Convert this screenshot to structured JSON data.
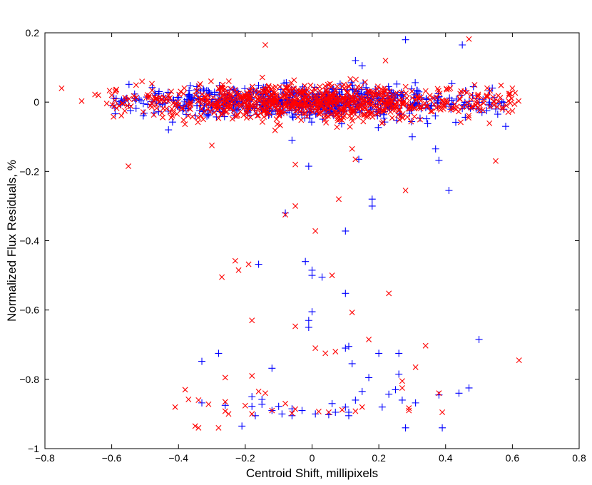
{
  "chart_data": {
    "type": "scatter",
    "title": "",
    "xlabel": "Centroid Shift, millipixels",
    "ylabel": "Normalized Flux Residuals, %",
    "xlim": [
      -0.8,
      0.8
    ],
    "ylim": [
      -1,
      0.2
    ],
    "xticks": [
      -0.8,
      -0.6,
      -0.4,
      -0.2,
      0,
      0.2,
      0.4,
      0.6,
      0.8
    ],
    "yticks": [
      -1,
      -0.8,
      -0.6,
      -0.4,
      -0.2,
      0,
      0.2
    ],
    "xtick_labels": [
      "−0.8",
      "−0.6",
      "−0.4",
      "−0.2",
      "0",
      "0.2",
      "0.4",
      "0.6",
      "0.8"
    ],
    "ytick_labels": [
      "−1",
      "−0.8",
      "−0.6",
      "−0.4",
      "−0.2",
      "0",
      "0.2"
    ],
    "grid": false,
    "legend": "none",
    "series": [
      {
        "marker": "plus",
        "color": "#0000ff",
        "cluster": {
          "n": 700,
          "x_range": [
            -0.6,
            0.58
          ],
          "y_mean": 0.0,
          "y_std": 0.022
        },
        "points": [
          [
            0.28,
            0.18
          ],
          [
            0.45,
            0.165
          ],
          [
            0.13,
            0.12
          ],
          [
            0.15,
            0.105
          ],
          [
            -0.43,
            -0.08
          ],
          [
            -0.06,
            -0.11
          ],
          [
            0.58,
            -0.07
          ],
          [
            0.3,
            -0.1
          ],
          [
            0.37,
            -0.135
          ],
          [
            0.38,
            -0.168
          ],
          [
            0.14,
            -0.165
          ],
          [
            -0.01,
            -0.185
          ],
          [
            0.41,
            -0.255
          ],
          [
            0.18,
            -0.28
          ],
          [
            0.18,
            -0.3
          ],
          [
            -0.08,
            -0.32
          ],
          [
            0.1,
            -0.372
          ],
          [
            -0.02,
            -0.46
          ],
          [
            0.0,
            -0.485
          ],
          [
            0.0,
            -0.5
          ],
          [
            0.03,
            -0.505
          ],
          [
            -0.16,
            -0.468
          ],
          [
            0.1,
            -0.552
          ],
          [
            0.0,
            -0.605
          ],
          [
            -0.01,
            -0.63
          ],
          [
            -0.01,
            -0.65
          ],
          [
            0.5,
            -0.685
          ],
          [
            0.1,
            -0.71
          ],
          [
            0.11,
            -0.705
          ],
          [
            -0.28,
            -0.725
          ],
          [
            0.2,
            -0.725
          ],
          [
            0.26,
            -0.725
          ],
          [
            -0.33,
            -0.748
          ],
          [
            0.12,
            -0.755
          ],
          [
            -0.12,
            -0.768
          ],
          [
            0.26,
            -0.785
          ],
          [
            0.17,
            -0.795
          ],
          [
            0.47,
            -0.825
          ],
          [
            0.25,
            -0.83
          ],
          [
            0.15,
            -0.835
          ],
          [
            0.23,
            -0.843
          ],
          [
            0.44,
            -0.84
          ],
          [
            0.38,
            -0.845
          ],
          [
            -0.18,
            -0.85
          ],
          [
            -0.15,
            -0.858
          ],
          [
            0.13,
            -0.86
          ],
          [
            0.27,
            -0.86
          ],
          [
            -0.33,
            -0.868
          ],
          [
            0.31,
            -0.868
          ],
          [
            0.06,
            -0.87
          ],
          [
            -0.26,
            -0.875
          ],
          [
            -0.18,
            -0.878
          ],
          [
            -0.15,
            -0.872
          ],
          [
            -0.1,
            -0.878
          ],
          [
            -0.06,
            -0.885
          ],
          [
            0.1,
            -0.88
          ],
          [
            0.21,
            -0.88
          ],
          [
            -0.12,
            -0.89
          ],
          [
            -0.03,
            -0.89
          ],
          [
            0.07,
            -0.895
          ],
          [
            0.11,
            -0.895
          ],
          [
            0.01,
            -0.9
          ],
          [
            -0.09,
            -0.9
          ],
          [
            -0.06,
            -0.905
          ],
          [
            -0.17,
            -0.905
          ],
          [
            0.11,
            -0.905
          ],
          [
            0.05,
            -0.902
          ],
          [
            -0.21,
            -0.935
          ],
          [
            0.28,
            -0.94
          ],
          [
            0.39,
            -0.94
          ]
        ]
      },
      {
        "marker": "x",
        "color": "#ff0000",
        "cluster": {
          "n": 900,
          "x_range": [
            -0.62,
            0.62
          ],
          "y_mean": 0.0,
          "y_std": 0.024
        },
        "points": [
          [
            -0.75,
            0.04
          ],
          [
            -0.69,
            0.003
          ],
          [
            -0.65,
            0.022
          ],
          [
            -0.64,
            0.02
          ],
          [
            -0.6,
            0.02
          ],
          [
            0.6,
            0.04
          ],
          [
            0.59,
            0.02
          ],
          [
            -0.14,
            0.165
          ],
          [
            0.47,
            0.182
          ],
          [
            0.22,
            0.12
          ],
          [
            -0.3,
            -0.125
          ],
          [
            0.12,
            -0.135
          ],
          [
            0.13,
            -0.165
          ],
          [
            -0.55,
            -0.185
          ],
          [
            0.55,
            -0.17
          ],
          [
            -0.05,
            -0.18
          ],
          [
            0.28,
            -0.255
          ],
          [
            0.08,
            -0.28
          ],
          [
            -0.05,
            -0.3
          ],
          [
            -0.08,
            -0.325
          ],
          [
            0.01,
            -0.372
          ],
          [
            -0.23,
            -0.458
          ],
          [
            -0.19,
            -0.468
          ],
          [
            -0.22,
            -0.485
          ],
          [
            -0.27,
            -0.505
          ],
          [
            0.06,
            -0.5
          ],
          [
            0.23,
            -0.552
          ],
          [
            0.12,
            -0.607
          ],
          [
            -0.18,
            -0.63
          ],
          [
            -0.05,
            -0.647
          ],
          [
            0.17,
            -0.685
          ],
          [
            0.34,
            -0.703
          ],
          [
            0.01,
            -0.71
          ],
          [
            0.04,
            -0.725
          ],
          [
            0.07,
            -0.72
          ],
          [
            0.31,
            -0.765
          ],
          [
            0.62,
            -0.745
          ],
          [
            -0.18,
            -0.79
          ],
          [
            -0.26,
            -0.795
          ],
          [
            0.27,
            -0.805
          ],
          [
            0.27,
            -0.825
          ],
          [
            -0.38,
            -0.83
          ],
          [
            -0.16,
            -0.835
          ],
          [
            -0.14,
            -0.84
          ],
          [
            0.38,
            -0.84
          ],
          [
            -0.37,
            -0.858
          ],
          [
            -0.34,
            -0.86
          ],
          [
            -0.26,
            -0.865
          ],
          [
            -0.31,
            -0.872
          ],
          [
            -0.08,
            -0.87
          ],
          [
            -0.41,
            -0.88
          ],
          [
            -0.2,
            -0.876
          ],
          [
            0.29,
            -0.883
          ],
          [
            0.15,
            -0.88
          ],
          [
            -0.05,
            -0.886
          ],
          [
            0.09,
            -0.888
          ],
          [
            0.02,
            -0.893
          ],
          [
            0.05,
            -0.895
          ],
          [
            0.13,
            -0.892
          ],
          [
            -0.25,
            -0.9
          ],
          [
            -0.18,
            -0.9
          ],
          [
            -0.06,
            -0.898
          ],
          [
            -0.26,
            -0.892
          ],
          [
            -0.12,
            -0.89
          ],
          [
            0.29,
            -0.89
          ],
          [
            0.39,
            -0.895
          ],
          [
            -0.34,
            -0.94
          ],
          [
            -0.28,
            -0.94
          ],
          [
            -0.35,
            -0.935
          ]
        ]
      }
    ]
  }
}
